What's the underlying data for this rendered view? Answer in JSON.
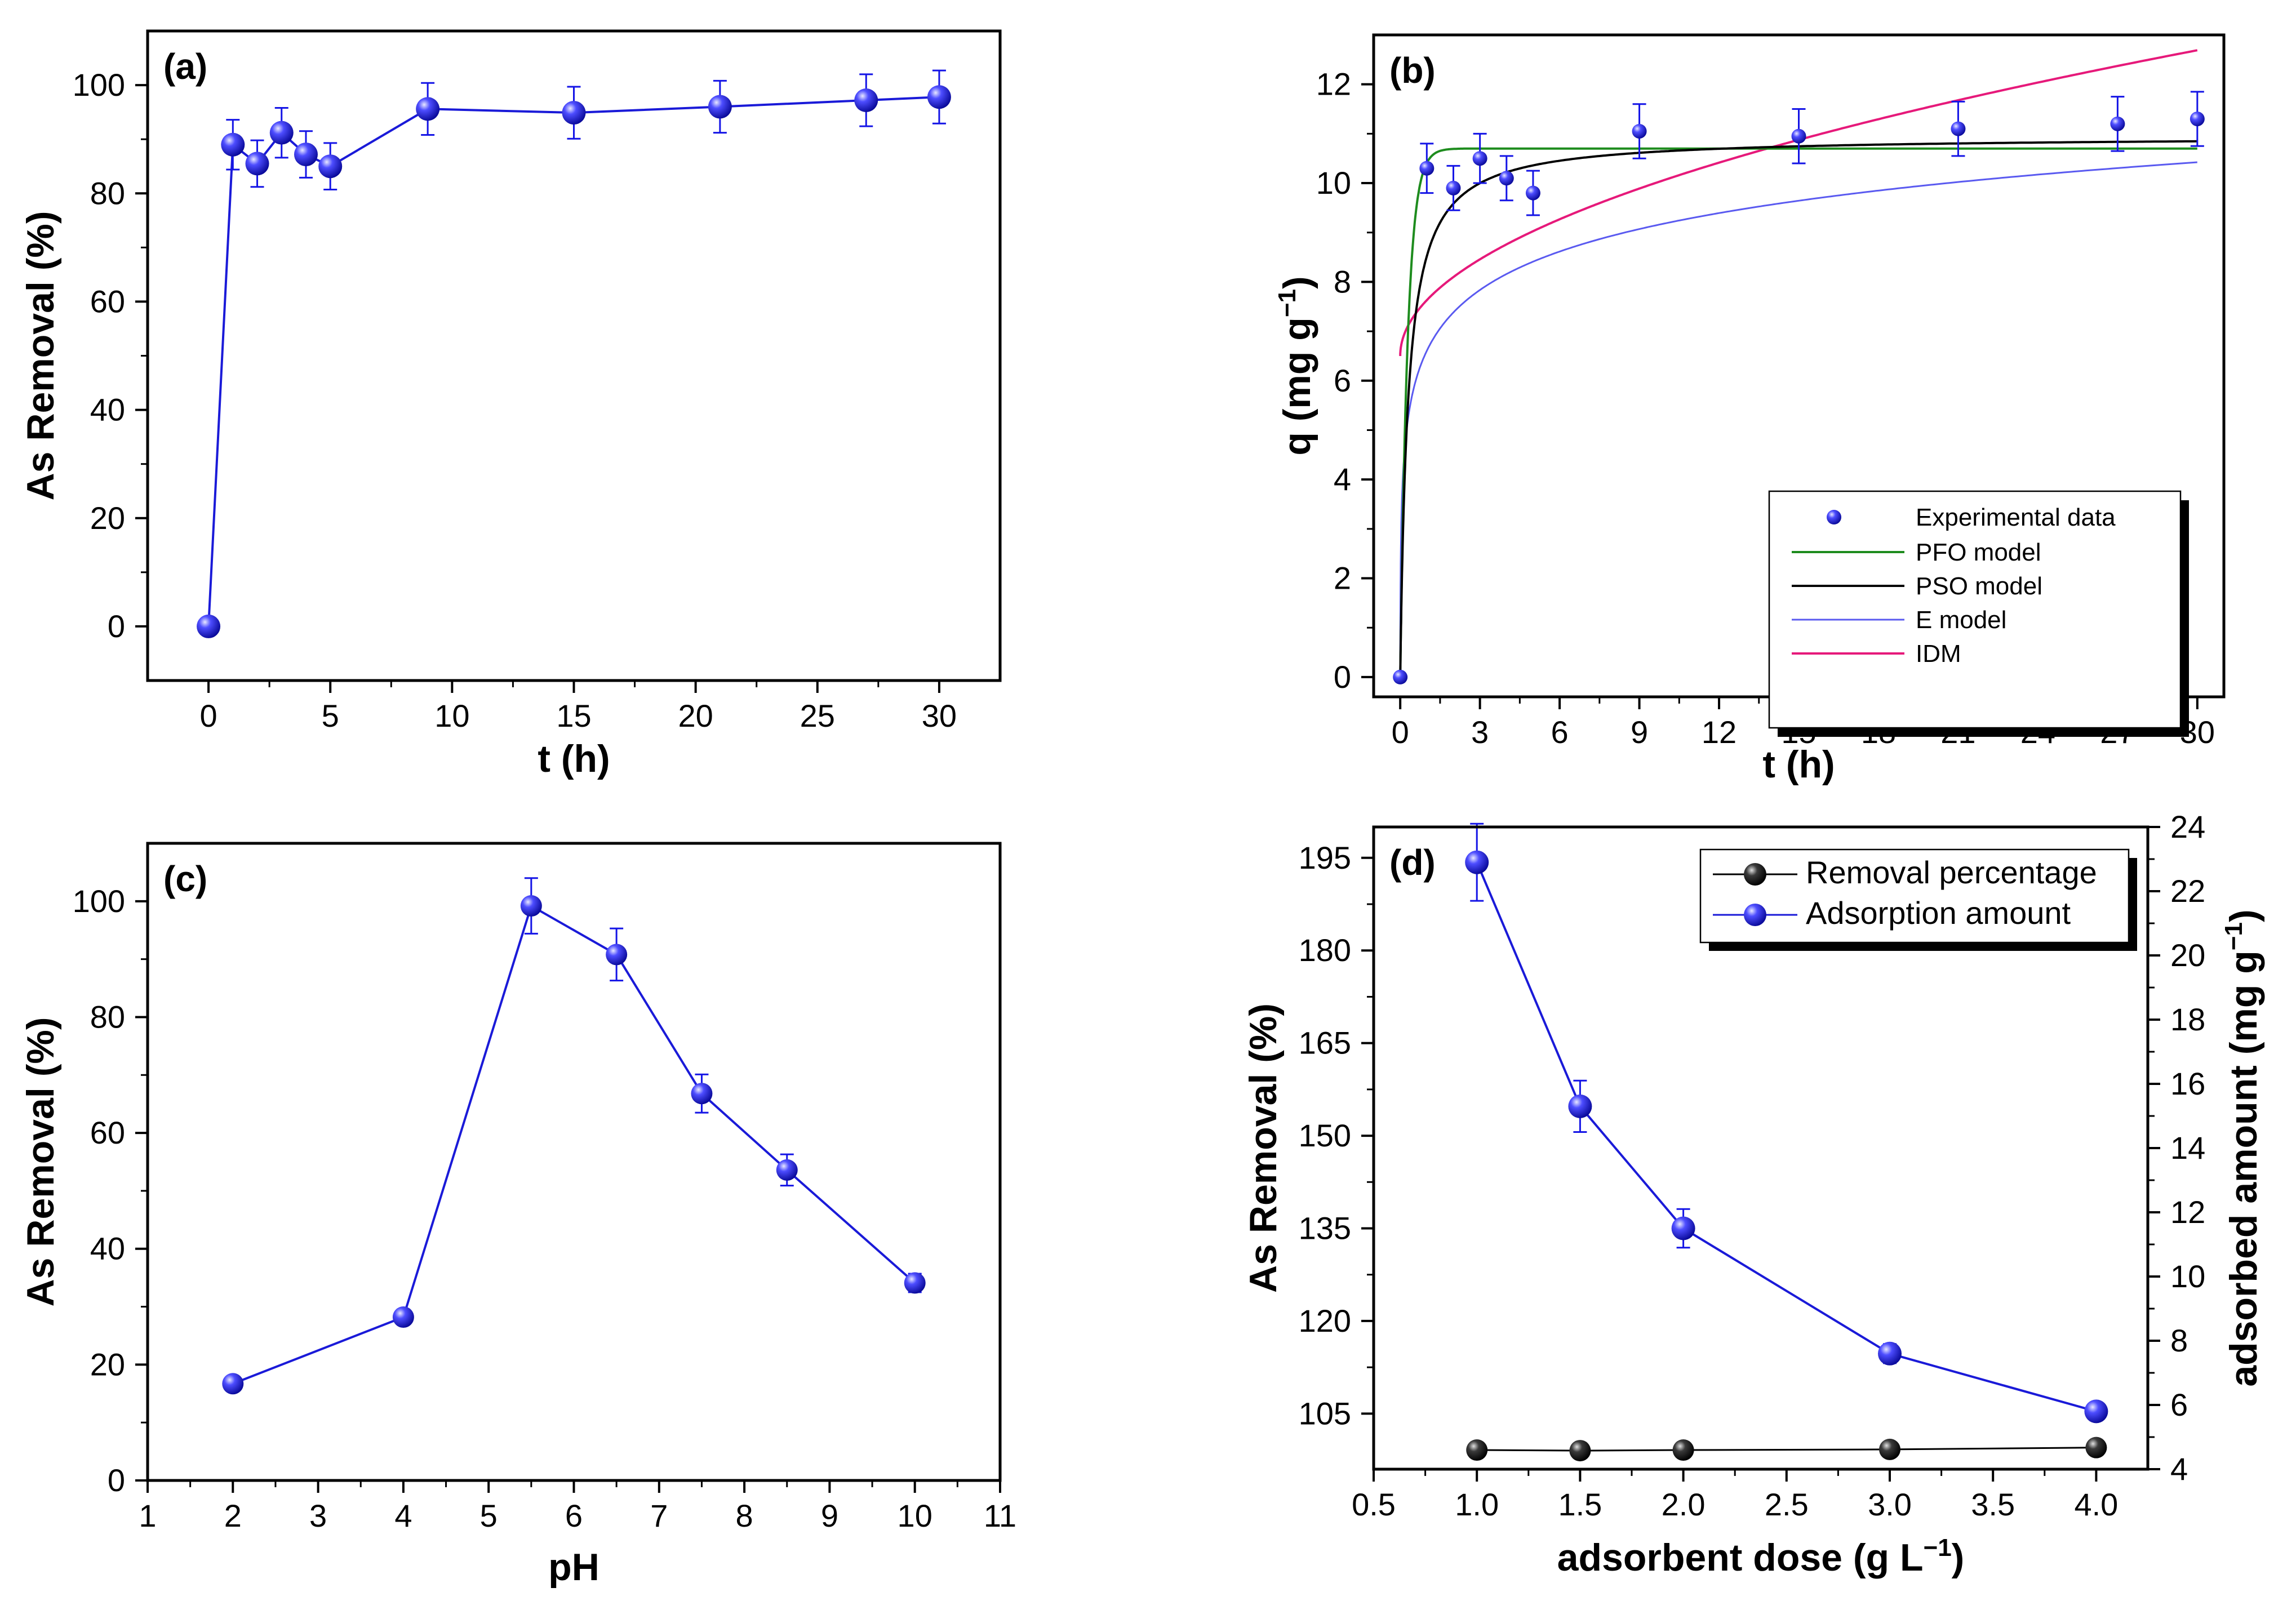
{
  "colors": {
    "blue": "#1414e6",
    "blue_line": "#1a1ad8",
    "green": "#1e8c1e",
    "black": "#000000",
    "pink": "#e6197a",
    "light_blue": "#5a5af0"
  },
  "chart_data": [
    {
      "panel": "(a)",
      "type": "scatter-line",
      "xlabel": "t (h)",
      "ylabel": "As Removal (%)",
      "xlim": [
        -2.5,
        32.5
      ],
      "ylim": [
        -10,
        110
      ],
      "xticks": [
        0,
        5,
        10,
        15,
        20,
        25,
        30
      ],
      "yticks": [
        0,
        20,
        40,
        60,
        80,
        100
      ],
      "x": [
        0,
        1,
        2,
        3,
        4,
        5,
        9,
        15,
        21,
        27,
        30
      ],
      "y": [
        0,
        89,
        85.5,
        91.2,
        87.2,
        85,
        95.6,
        94.9,
        96,
        97.2,
        97.8
      ],
      "err": [
        0,
        4.6,
        4.3,
        4.6,
        4.3,
        4.3,
        4.8,
        4.8,
        4.8,
        4.8,
        4.9
      ]
    },
    {
      "panel": "(b)",
      "type": "scatter-line",
      "xlabel": "t (h)",
      "ylabel": "q (mg g",
      "xlim": [
        -1,
        31
      ],
      "ylim": [
        -0.4,
        13
      ],
      "xticks": [
        0,
        3,
        6,
        9,
        12,
        15,
        18,
        21,
        24,
        27,
        30
      ],
      "yticks": [
        0,
        2,
        4,
        6,
        8,
        10,
        12
      ],
      "x": [
        0,
        1,
        2,
        3,
        4,
        5,
        9,
        15,
        21,
        27,
        30
      ],
      "y": [
        0,
        10.3,
        9.9,
        10.5,
        10.1,
        9.8,
        11.05,
        10.95,
        11.1,
        11.2,
        11.3
      ],
      "err": [
        0,
        0.5,
        0.45,
        0.5,
        0.45,
        0.45,
        0.55,
        0.55,
        0.55,
        0.55,
        0.55
      ],
      "models": {
        "pfo": {
          "qe": 10.7,
          "k1": 3.6
        },
        "pso": {
          "qe": 10.95,
          "k2": 0.32
        },
        "e": {
          "a": 400,
          "b": 0.89
        },
        "idm": {
          "c": 6.5,
          "k": 1.13
        }
      },
      "legend": [
        "Experimental data",
        "PFO model",
        "PSO model",
        "E model",
        "IDM"
      ],
      "legend_position": "bottom-right"
    },
    {
      "panel": "(c)",
      "type": "scatter-line",
      "xlabel": "pH",
      "ylabel": "As Removal (%)",
      "xlim": [
        1,
        11
      ],
      "ylim": [
        0,
        110
      ],
      "xticks": [
        1,
        2,
        3,
        4,
        5,
        6,
        7,
        8,
        9,
        10,
        11
      ],
      "yticks": [
        0,
        20,
        40,
        60,
        80,
        100
      ],
      "x": [
        2,
        4,
        5.5,
        6.5,
        7.5,
        8.5,
        10
      ],
      "y": [
        16.7,
        28.2,
        99.2,
        90.8,
        66.8,
        53.6,
        34.1
      ],
      "err": [
        0.6,
        1.3,
        4.8,
        4.5,
        3.3,
        2.7,
        1.6
      ]
    },
    {
      "panel": "(d)",
      "type": "dual-axis scatter-line",
      "xlabel": "adsorbent dose (g L",
      "ylabel": "As Removal (%)",
      "ylabel_right": "adsorbed amount (mg g",
      "xlim": [
        0.5,
        4.25
      ],
      "ylim": [
        96,
        200
      ],
      "ylim_right": [
        4,
        24
      ],
      "xticks": [
        "0.5",
        "1.0",
        "1.5",
        "2.0",
        "2.5",
        "3.0",
        "3.5",
        "4.0"
      ],
      "yticks": [
        105,
        120,
        135,
        150,
        165,
        180,
        195
      ],
      "yticks_right": [
        4,
        6,
        8,
        10,
        12,
        14,
        16,
        18,
        20,
        22,
        24
      ],
      "x": [
        1.0,
        1.5,
        2.0,
        3.0,
        4.0
      ],
      "series": [
        {
          "name": "Removal percentage",
          "axis": "left",
          "values": [
            99.1,
            99.0,
            99.1,
            99.2,
            99.5
          ]
        },
        {
          "name": "Adsorption amount",
          "axis": "right",
          "values": [
            22.9,
            15.3,
            11.5,
            7.6,
            5.8
          ],
          "err": [
            1.2,
            0.8,
            0.6,
            0.3,
            0
          ]
        }
      ],
      "legend": [
        "Removal percentage",
        "Adsorption amount"
      ],
      "legend_position": "top-right"
    }
  ]
}
